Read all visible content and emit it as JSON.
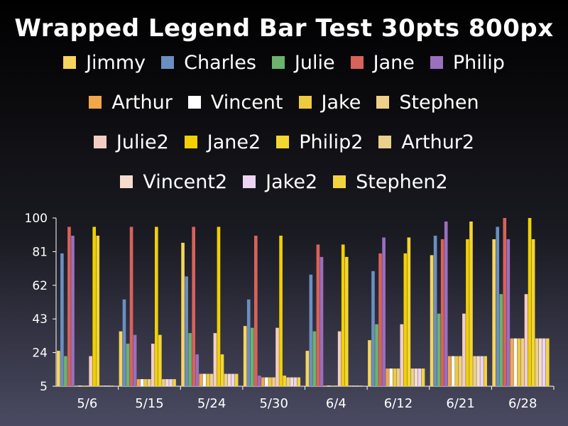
{
  "chart_data": {
    "type": "bar",
    "title": "Wrapped Legend Bar Test 30pts 800px",
    "xlabel": "",
    "ylabel": "",
    "ylim": [
      5,
      100
    ],
    "yticks": [
      "100",
      "81",
      "62",
      "43",
      "24",
      "5"
    ],
    "grid": false,
    "legend_position": "top",
    "categories": [
      "5/6",
      "5/15",
      "5/24",
      "5/30",
      "6/4",
      "6/12",
      "6/21",
      "6/28"
    ],
    "series": [
      {
        "name": "Jimmy",
        "color": "#f6d55c",
        "values": [
          25,
          36,
          86,
          39,
          25,
          31,
          79,
          88
        ]
      },
      {
        "name": "Charles",
        "color": "#6b8fc0",
        "values": [
          80,
          54,
          67,
          54,
          68,
          70,
          90,
          95
        ]
      },
      {
        "name": "Julie",
        "color": "#6cb36e",
        "values": [
          22,
          29,
          35,
          38,
          36,
          40,
          46,
          57
        ]
      },
      {
        "name": "Jane",
        "color": "#d9625a",
        "values": [
          95,
          95,
          95,
          90,
          85,
          80,
          88,
          100
        ]
      },
      {
        "name": "Philip",
        "color": "#9b6fbf",
        "values": [
          90,
          34,
          23,
          11,
          78,
          89,
          98,
          88
        ]
      },
      {
        "name": "Arthur",
        "color": "#f2a84a",
        "values": [
          5,
          9,
          12,
          10,
          5,
          15,
          22,
          32
        ]
      },
      {
        "name": "Vincent",
        "color": "#ffffff",
        "values": [
          5,
          9,
          12,
          10,
          5,
          15,
          22,
          32
        ]
      },
      {
        "name": "Jake",
        "color": "#eecb3e",
        "values": [
          5,
          9,
          12,
          10,
          5,
          15,
          22,
          32
        ]
      },
      {
        "name": "Stephen",
        "color": "#f0cf88",
        "values": [
          5,
          9,
          12,
          10,
          5,
          15,
          22,
          32
        ]
      },
      {
        "name": "Julie2",
        "color": "#f3cdc4",
        "values": [
          22,
          29,
          35,
          38,
          36,
          40,
          46,
          57
        ]
      },
      {
        "name": "Jane2",
        "color": "#f2d000",
        "values": [
          95,
          95,
          95,
          90,
          85,
          80,
          88,
          100
        ]
      },
      {
        "name": "Philip2",
        "color": "#f4d630",
        "values": [
          90,
          34,
          23,
          11,
          78,
          89,
          98,
          88
        ]
      },
      {
        "name": "Arthur2",
        "color": "#ead08a",
        "values": [
          5,
          9,
          12,
          10,
          5,
          15,
          22,
          32
        ]
      },
      {
        "name": "Vincent2",
        "color": "#f6dccd",
        "values": [
          5,
          9,
          12,
          10,
          5,
          15,
          22,
          32
        ]
      },
      {
        "name": "Jake2",
        "color": "#ecd4f2",
        "values": [
          5,
          9,
          12,
          10,
          5,
          15,
          22,
          32
        ]
      },
      {
        "name": "Stephen2",
        "color": "#f4d43e",
        "values": [
          5,
          9,
          12,
          10,
          5,
          15,
          22,
          32
        ]
      }
    ]
  }
}
